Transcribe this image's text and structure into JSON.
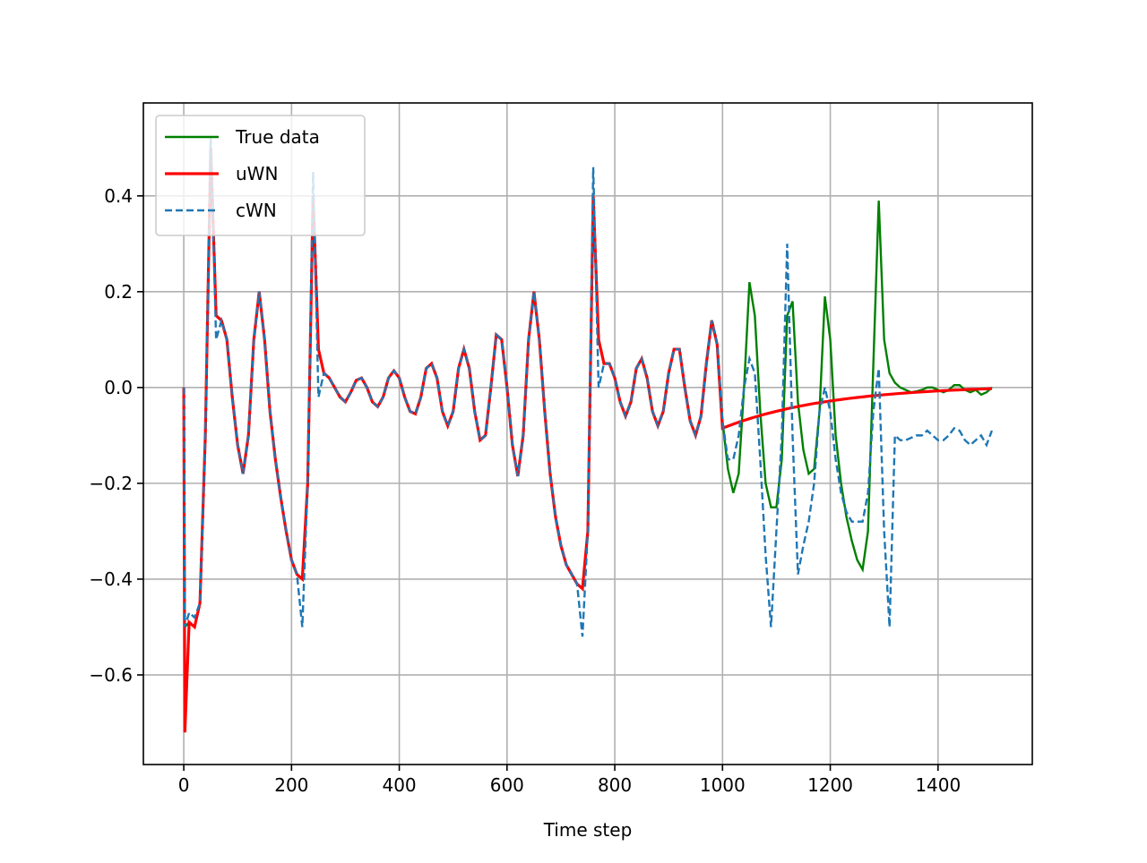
{
  "chart_data": {
    "type": "line",
    "xlabel": "Time step",
    "xlim": [
      -75,
      1575
    ],
    "ylim": [
      -0.787,
      0.594
    ],
    "xticks": [
      0,
      200,
      400,
      600,
      800,
      1000,
      1200,
      1400
    ],
    "yticks": [
      {
        "value": -0.6,
        "label": "−0.6"
      },
      {
        "value": -0.4,
        "label": "−0.4"
      },
      {
        "value": -0.2,
        "label": "−0.2"
      },
      {
        "value": 0,
        "label": "0.0"
      },
      0.2,
      0.4
    ],
    "grid": true,
    "legend": "upper-left",
    "x": [
      0,
      2,
      10,
      20,
      30,
      40,
      50,
      60,
      70,
      80,
      90,
      100,
      110,
      120,
      130,
      140,
      150,
      160,
      170,
      180,
      190,
      200,
      210,
      220,
      230,
      240,
      250,
      260,
      270,
      280,
      290,
      300,
      310,
      320,
      330,
      340,
      350,
      360,
      370,
      380,
      390,
      400,
      410,
      420,
      430,
      440,
      450,
      460,
      470,
      480,
      490,
      500,
      510,
      520,
      530,
      540,
      550,
      560,
      570,
      580,
      590,
      600,
      610,
      620,
      630,
      640,
      650,
      660,
      670,
      680,
      690,
      700,
      710,
      720,
      730,
      740,
      750,
      760,
      770,
      780,
      790,
      800,
      810,
      820,
      830,
      840,
      850,
      860,
      870,
      880,
      890,
      900,
      910,
      920,
      930,
      940,
      950,
      960,
      970,
      980,
      990,
      1000,
      1010,
      1020,
      1030,
      1040,
      1050,
      1060,
      1070,
      1080,
      1090,
      1100,
      1110,
      1120,
      1130,
      1140,
      1150,
      1160,
      1170,
      1180,
      1190,
      1200,
      1210,
      1220,
      1230,
      1240,
      1250,
      1260,
      1270,
      1280,
      1290,
      1300,
      1310,
      1320,
      1330,
      1340,
      1350,
      1360,
      1370,
      1380,
      1390,
      1400,
      1410,
      1420,
      1430,
      1440,
      1450,
      1460,
      1470,
      1480,
      1490,
      1500
    ],
    "series": [
      {
        "name": "True data",
        "color": "#008000",
        "dash": false,
        "width": 2.4,
        "values": [
          0,
          -0.5,
          -0.49,
          -0.5,
          -0.45,
          -0.1,
          0.5,
          0.15,
          0.14,
          0.1,
          -0.02,
          -0.12,
          -0.18,
          -0.1,
          0.1,
          0.2,
          0.1,
          -0.05,
          -0.15,
          -0.23,
          -0.3,
          -0.36,
          -0.39,
          -0.4,
          -0.2,
          0.4,
          0.08,
          0.03,
          0.02,
          0,
          -0.02,
          -0.03,
          -0.01,
          0.015,
          0.02,
          0,
          -0.03,
          -0.04,
          -0.02,
          0.02,
          0.035,
          0.02,
          -0.02,
          -0.05,
          -0.055,
          -0.02,
          0.04,
          0.05,
          0.02,
          -0.05,
          -0.08,
          -0.05,
          0.04,
          0.08,
          0.04,
          -0.05,
          -0.11,
          -0.1,
          0,
          0.11,
          0.1,
          0,
          -0.12,
          -0.185,
          -0.1,
          0.1,
          0.2,
          0.1,
          -0.05,
          -0.18,
          -0.27,
          -0.33,
          -0.37,
          -0.39,
          -0.41,
          -0.42,
          -0.3,
          0.4,
          0.1,
          0.05,
          0.05,
          0.02,
          -0.03,
          -0.06,
          -0.03,
          0.04,
          0.06,
          0.02,
          -0.05,
          -0.08,
          -0.05,
          0.03,
          0.08,
          0.08,
          0,
          -0.07,
          -0.1,
          -0.06,
          0.05,
          0.14,
          0.09,
          -0.07,
          -0.17,
          -0.22,
          -0.18,
          0,
          0.22,
          0.15,
          -0.05,
          -0.2,
          -0.25,
          -0.25,
          -0.15,
          0.15,
          0.18,
          -0.03,
          -0.13,
          -0.18,
          -0.17,
          -0.05,
          0.19,
          0.1,
          -0.1,
          -0.2,
          -0.27,
          -0.32,
          -0.36,
          -0.38,
          -0.3,
          0.05,
          0.39,
          0.1,
          0.03,
          0.01,
          0,
          -0.005,
          -0.01,
          -0.008,
          -0.005,
          0,
          0,
          -0.005,
          -0.01,
          -0.005,
          0.005,
          0.005,
          -0.005,
          -0.01,
          -0.005,
          -0.015,
          -0.01,
          0
        ]
      },
      {
        "name": "uWN",
        "color": "#ff0000",
        "dash": false,
        "width": 3.2,
        "values": [
          0,
          -0.72,
          -0.49,
          -0.5,
          -0.45,
          -0.1,
          0.5,
          0.15,
          0.14,
          0.1,
          -0.02,
          -0.12,
          -0.18,
          -0.1,
          0.1,
          0.2,
          0.1,
          -0.05,
          -0.15,
          -0.23,
          -0.3,
          -0.36,
          -0.39,
          -0.4,
          -0.2,
          0.4,
          0.08,
          0.03,
          0.02,
          0,
          -0.02,
          -0.03,
          -0.01,
          0.015,
          0.02,
          0,
          -0.03,
          -0.04,
          -0.02,
          0.02,
          0.035,
          0.02,
          -0.02,
          -0.05,
          -0.055,
          -0.02,
          0.04,
          0.05,
          0.02,
          -0.05,
          -0.08,
          -0.05,
          0.04,
          0.08,
          0.04,
          -0.05,
          -0.11,
          -0.1,
          0,
          0.11,
          0.1,
          0,
          -0.12,
          -0.185,
          -0.1,
          0.1,
          0.2,
          0.1,
          -0.05,
          -0.18,
          -0.27,
          -0.33,
          -0.37,
          -0.39,
          -0.41,
          -0.42,
          -0.3,
          0.4,
          0.1,
          0.05,
          0.05,
          0.02,
          -0.03,
          -0.06,
          -0.03,
          0.04,
          0.06,
          0.02,
          -0.05,
          -0.08,
          -0.05,
          0.03,
          0.08,
          0.08,
          0,
          -0.07,
          -0.1,
          -0.06,
          0.05,
          0.14,
          0.09,
          -0.085,
          -0.0806,
          -0.0765,
          -0.0725,
          -0.0687,
          -0.0651,
          -0.0617,
          -0.0584,
          -0.0553,
          -0.0524,
          -0.0496,
          -0.047,
          -0.0444,
          -0.042,
          -0.0397,
          -0.0375,
          -0.0354,
          -0.0334,
          -0.0316,
          -0.0298,
          -0.0281,
          -0.0265,
          -0.025,
          -0.0235,
          -0.0221,
          -0.0208,
          -0.0196,
          -0.0183,
          -0.0172,
          -0.0162,
          -0.0151,
          -0.0141,
          -0.0132,
          -0.0123,
          -0.0115,
          -0.0107,
          -0.0099,
          -0.0091,
          -0.0085,
          -0.0078,
          -0.0072,
          -0.0066,
          -0.006,
          -0.0054,
          -0.005,
          -0.0045,
          -0.004,
          -0.0036,
          -0.0032,
          -0.0027,
          -0.0024
        ]
      },
      {
        "name": "cWN",
        "color": "#1f77b4",
        "dash": true,
        "width": 2.4,
        "values": [
          0,
          -0.5,
          -0.47,
          -0.48,
          -0.45,
          -0.1,
          0.52,
          0.1,
          0.14,
          0.1,
          -0.02,
          -0.12,
          -0.18,
          -0.1,
          0.1,
          0.2,
          0.1,
          -0.05,
          -0.15,
          -0.23,
          -0.3,
          -0.36,
          -0.39,
          -0.5,
          -0.2,
          0.45,
          -0.02,
          0.03,
          0.02,
          0,
          -0.02,
          -0.03,
          -0.01,
          0.015,
          0.02,
          0,
          -0.03,
          -0.04,
          -0.02,
          0.02,
          0.035,
          0.02,
          -0.02,
          -0.05,
          -0.055,
          -0.02,
          0.04,
          0.05,
          0.02,
          -0.05,
          -0.08,
          -0.05,
          0.04,
          0.08,
          0.04,
          -0.05,
          -0.11,
          -0.1,
          0,
          0.11,
          0.1,
          0,
          -0.12,
          -0.185,
          -0.1,
          0.1,
          0.2,
          0.1,
          -0.05,
          -0.18,
          -0.27,
          -0.33,
          -0.37,
          -0.39,
          -0.41,
          -0.52,
          -0.3,
          0.46,
          0,
          0.05,
          0.05,
          0.02,
          -0.03,
          -0.06,
          -0.03,
          0.04,
          0.06,
          0.02,
          -0.05,
          -0.08,
          -0.05,
          0.03,
          0.08,
          0.08,
          0,
          -0.07,
          -0.1,
          -0.06,
          0.05,
          0.14,
          0.09,
          -0.07,
          -0.15,
          -0.15,
          -0.1,
          0,
          0.06,
          0.03,
          -0.15,
          -0.35,
          -0.5,
          -0.3,
          -0.1,
          0.3,
          -0.1,
          -0.39,
          -0.33,
          -0.28,
          -0.2,
          -0.05,
          0,
          -0.05,
          -0.15,
          -0.22,
          -0.26,
          -0.28,
          -0.28,
          -0.28,
          -0.22,
          -0.05,
          0.04,
          -0.3,
          -0.5,
          -0.1,
          -0.11,
          -0.11,
          -0.105,
          -0.1,
          -0.1,
          -0.09,
          -0.1,
          -0.11,
          -0.11,
          -0.1,
          -0.085,
          -0.09,
          -0.11,
          -0.12,
          -0.11,
          -0.1,
          -0.12,
          -0.09
        ]
      }
    ]
  }
}
